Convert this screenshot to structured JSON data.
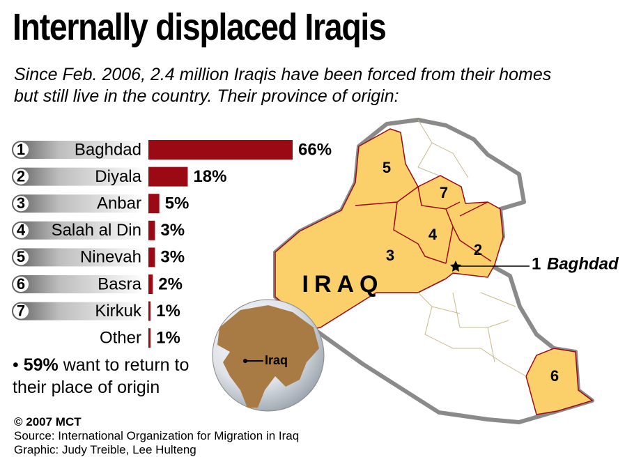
{
  "title": "Internally displaced Iraqis",
  "subtitle": "Since Feb. 2006, 2.4 million Iraqis have been forced from their homes but still live in the country. Their province of origin:",
  "chart_data": {
    "type": "bar",
    "ranks": [
      1,
      2,
      3,
      4,
      5,
      6,
      7,
      null
    ],
    "categories": [
      "Baghdad",
      "Diyala",
      "Anbar",
      "Salah al Din",
      "Ninevah",
      "Basra",
      "Kirkuk",
      "Other"
    ],
    "values": [
      66,
      18,
      5,
      3,
      3,
      2,
      1,
      1
    ],
    "value_labels": [
      "66%",
      "18%",
      "5%",
      "3%",
      "3%",
      "2%",
      "1%",
      "1%"
    ],
    "color": "#9b0a14"
  },
  "note": {
    "highlight": "59%",
    "text": "want to return to their place of origin"
  },
  "map": {
    "country": "IRAQ",
    "capital_rank": "1",
    "capital": "Baghdad",
    "globe_label": "Iraq",
    "province_numbers": [
      "5",
      "7",
      "4",
      "3",
      "2",
      "6"
    ]
  },
  "credits": {
    "copyright": "© 2007 MCT",
    "source": "Source: International Organization for Migration in Iraq",
    "graphic": "Graphic: Judy Treible, Lee Hulteng"
  }
}
